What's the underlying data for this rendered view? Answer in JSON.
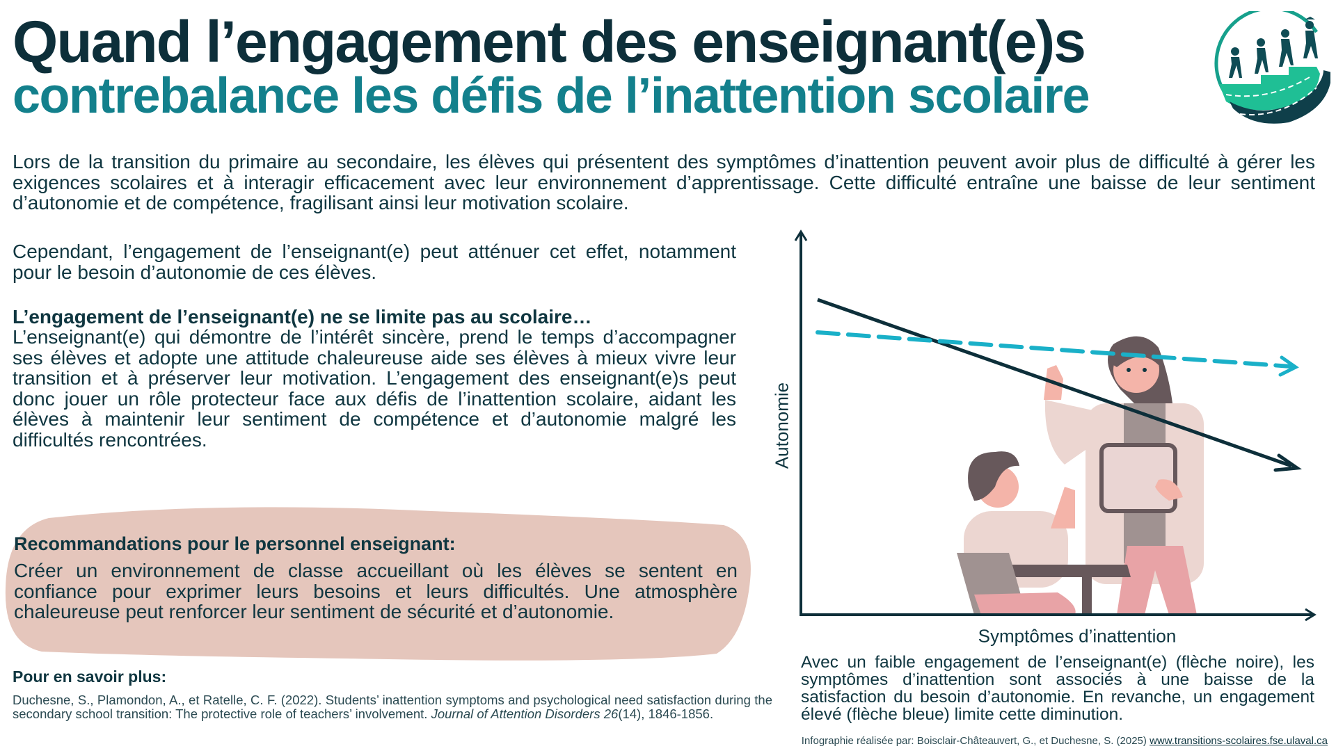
{
  "header": {
    "title_line1": "Quand l’engagement des enseignant(e)s",
    "title_line2": "contrebalance les défis de l’inattention scolaire",
    "logo_icon": "students-climbing-stairs-road-logo"
  },
  "intro": "Lors de la transition du primaire au secondaire, les élèves qui présentent des symptômes d’inattention peuvent avoir plus de difficulté à gérer les exigences scolaires et à interagir efficacement avec leur environnement d’apprentissage. Cette difficulté entraîne une baisse de leur sentiment d’autonomie et de compétence, fragilisant ainsi leur motivation scolaire.",
  "left": {
    "paragraph1": "Cependant, l’engagement de l’enseignant(e) peut atténuer cet effet, notamment pour le besoin d’autonomie de ces élèves.",
    "heading": "L’engagement de l’enseignant(e) ne se limite pas au scolaire…",
    "paragraph2": "L’enseignant(e) qui démontre de l’intérêt sincère, prend le temps d’accompagner ses élèves et adopte une attitude chaleureuse aide ses élèves à mieux vivre leur transition et à préserver leur motivation. L’engagement des enseignant(e)s peut donc jouer un rôle protecteur face aux défis de l’inattention scolaire, aidant les élèves à maintenir leur sentiment de compétence et d’autonomie malgré les difficultés rencontrées."
  },
  "recommendations": {
    "heading": "Recommandations pour le personnel enseignant:",
    "text": "Créer un environnement de classe accueillant où les élèves se sentent en confiance pour exprimer leurs besoins et leurs difficultés. Une atmosphère chaleureuse peut renforcer leur sentiment de sécurité et d’autonomie.",
    "color": "#e5c6bc"
  },
  "references": {
    "heading": "Pour en savoir plus:",
    "citation_main": "Duchesne, S., Plamondon, A., et Ratelle, C. F. (2022). Students’ inattention symptoms and psychological need satisfaction during the secondary school transition: The protective role of teachers’ involvement. ",
    "citation_journal": "Journal of Attention Disorders 26",
    "citation_end": "(14), 1846-1856."
  },
  "diagram": {
    "y_label": "Autonomie",
    "x_label": "Symptômes d’inattention",
    "low_engagement_color": "#0d2f3a",
    "high_engagement_color": "#1ab0c8",
    "caption": "Avec un faible engagement de l’enseignant(e) (flèche noire), les symptômes d’inattention sont associés à une baisse de la satisfaction du besoin d’autonomie. En revanche, un engagement élevé (flèche bleue) limite cette diminution.",
    "illustration": "teacher-and-student-illustration"
  },
  "footer": {
    "credit": "Infographie réalisée par: Boisclair-Châteauvert, G., et Duchesne, S. (2025) ",
    "link": "www.transitions-scolaires.fse.ulaval.ca"
  }
}
